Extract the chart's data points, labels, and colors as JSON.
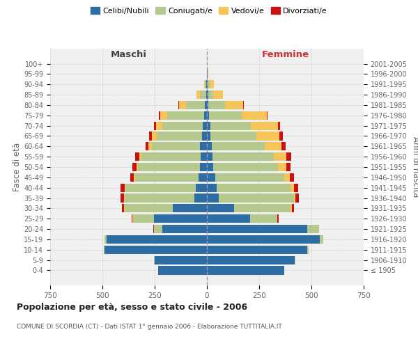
{
  "age_groups": [
    "100+",
    "95-99",
    "90-94",
    "85-89",
    "80-84",
    "75-79",
    "70-74",
    "65-69",
    "60-64",
    "55-59",
    "50-54",
    "45-49",
    "40-44",
    "35-39",
    "30-34",
    "25-29",
    "20-24",
    "15-19",
    "10-14",
    "5-9",
    "0-4"
  ],
  "birth_years": [
    "≤ 1905",
    "1906-1910",
    "1911-1915",
    "1916-1920",
    "1921-1925",
    "1926-1930",
    "1931-1935",
    "1936-1940",
    "1941-1945",
    "1946-1950",
    "1951-1955",
    "1956-1960",
    "1961-1965",
    "1966-1970",
    "1971-1975",
    "1976-1980",
    "1981-1985",
    "1986-1990",
    "1991-1995",
    "1996-2000",
    "2001-2005"
  ],
  "males": {
    "celibe": [
      0,
      0,
      2,
      5,
      10,
      15,
      20,
      25,
      35,
      30,
      35,
      40,
      55,
      60,
      165,
      255,
      215,
      480,
      490,
      250,
      235
    ],
    "coniugato": [
      0,
      0,
      8,
      30,
      90,
      175,
      195,
      215,
      230,
      285,
      295,
      305,
      335,
      335,
      230,
      100,
      40,
      10,
      5,
      2,
      0
    ],
    "vedovo": [
      0,
      0,
      5,
      15,
      35,
      35,
      30,
      25,
      15,
      10,
      8,
      5,
      5,
      3,
      2,
      1,
      0,
      0,
      0,
      0,
      0
    ],
    "divorziato": [
      0,
      0,
      0,
      0,
      2,
      5,
      8,
      12,
      15,
      20,
      18,
      18,
      20,
      15,
      10,
      5,
      2,
      0,
      0,
      0,
      0
    ]
  },
  "females": {
    "nubile": [
      0,
      2,
      3,
      5,
      8,
      10,
      15,
      18,
      22,
      25,
      30,
      40,
      45,
      55,
      130,
      205,
      480,
      540,
      480,
      420,
      370
    ],
    "coniugata": [
      0,
      0,
      10,
      25,
      80,
      155,
      195,
      220,
      255,
      295,
      310,
      330,
      355,
      360,
      270,
      130,
      55,
      15,
      5,
      2,
      0
    ],
    "vedova": [
      0,
      5,
      20,
      45,
      85,
      120,
      130,
      110,
      80,
      60,
      40,
      25,
      15,
      8,
      5,
      3,
      1,
      0,
      0,
      0,
      0
    ],
    "divorziata": [
      0,
      0,
      0,
      0,
      2,
      5,
      10,
      15,
      18,
      22,
      20,
      22,
      22,
      18,
      12,
      6,
      2,
      0,
      0,
      0,
      0
    ]
  },
  "colors": {
    "celibe": "#2e6da4",
    "coniugato": "#b5c98e",
    "vedovo": "#f5c55a",
    "divorziato": "#cc1111"
  },
  "xlim": 750,
  "title": "Popolazione per età, sesso e stato civile - 2006",
  "subtitle": "COMUNE DI SCORDIA (CT) - Dati ISTAT 1° gennaio 2006 - Elaborazione TUTTITALIA.IT",
  "legend_labels": [
    "Celibi/Nubili",
    "Coniugati/e",
    "Vedovi/e",
    "Divorziati/e"
  ],
  "ylabel_left": "Fasce di età",
  "ylabel_right": "Anni di nascita",
  "xlabel_maschi": "Maschi",
  "xlabel_femmine": "Femmine",
  "bg_color": "#ffffff",
  "plot_bg": "#f0f0f0",
  "grid_color": "#cccccc"
}
